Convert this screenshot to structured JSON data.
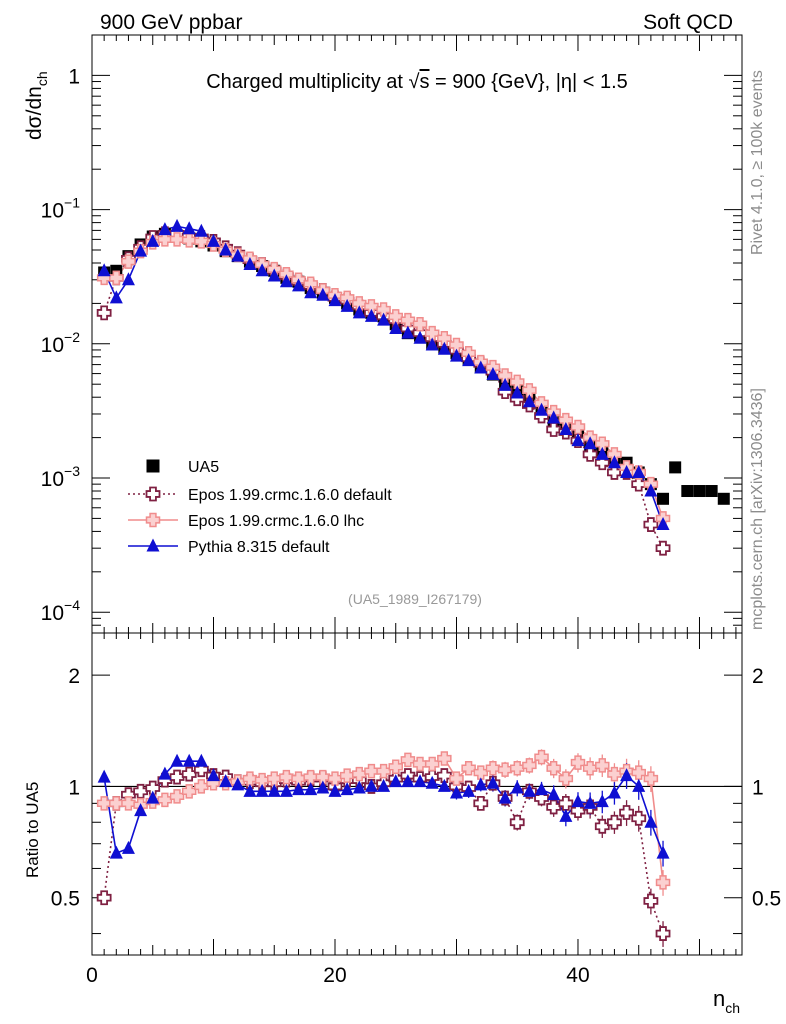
{
  "header": {
    "left": "900 GeV ppbar",
    "right": "Soft QCD"
  },
  "side_labels": {
    "rivet": "Rivet 4.1.0, ≥ 100k events",
    "mcplots": "mcplots.cern.ch [arXiv:1306.3436]"
  },
  "chart_data": [
    {
      "type": "scatter",
      "title": "Charged multiplicity at √s = 900 {GeV}, |η| < 1.5",
      "title_parts": {
        "a": "Charged multiplicity at ",
        "sqrt": "√",
        "s": "s",
        "b": " = 900 {GeV}, |η| < 1.5"
      },
      "ylabel": {
        "main": "dσ/dn",
        "sub": "ch"
      },
      "yscale": "log",
      "ylim": [
        7e-05,
        2.0
      ],
      "xlim": [
        0,
        53.5
      ],
      "ytick_labels": [
        {
          "value": 1,
          "mant": "1",
          "exp": ""
        },
        {
          "value": 0.1,
          "mant": "10",
          "exp": "−1"
        },
        {
          "value": 0.01,
          "mant": "10",
          "exp": "−2"
        },
        {
          "value": 0.001,
          "mant": "10",
          "exp": "−3"
        },
        {
          "value": 0.0001,
          "mant": "10",
          "exp": "−4"
        }
      ],
      "watermark": "(UA5_1989_I267179)",
      "legend": {
        "position": "bottom-left"
      },
      "series": [
        {
          "name": "UA5",
          "color": "#000000",
          "marker": "square",
          "x": [
            1,
            2,
            3,
            4,
            5,
            6,
            7,
            8,
            9,
            10,
            11,
            12,
            13,
            14,
            15,
            16,
            17,
            18,
            19,
            20,
            21,
            22,
            23,
            24,
            25,
            26,
            27,
            28,
            29,
            30,
            31,
            32,
            33,
            34,
            35,
            36,
            37,
            38,
            39,
            40,
            41,
            42,
            43,
            44,
            45,
            46,
            47,
            48,
            49,
            50,
            51,
            52
          ],
          "y": [
            0.034,
            0.035,
            0.045,
            0.055,
            0.063,
            0.066,
            0.064,
            0.061,
            0.058,
            0.054,
            0.049,
            0.045,
            0.041,
            0.038,
            0.035,
            0.031,
            0.029,
            0.026,
            0.024,
            0.022,
            0.02,
            0.018,
            0.017,
            0.016,
            0.014,
            0.012,
            0.0115,
            0.01,
            0.0093,
            0.0085,
            0.0077,
            0.0067,
            0.0059,
            0.0052,
            0.0046,
            0.0039,
            0.0031,
            0.0026,
            0.0025,
            0.0021,
            0.0017,
            0.0016,
            0.0014,
            0.0013,
            0.0011,
            0.0009,
            0.0007,
            0.0012,
            0.0008,
            0.0008,
            0.0008,
            0.0007
          ]
        },
        {
          "name": "Epos 1.99.crmc.1.6.0 default",
          "color": "#7f2042",
          "marker": "open-cross",
          "line": "dotted",
          "x": [
            1,
            2,
            3,
            4,
            5,
            6,
            7,
            8,
            9,
            10,
            11,
            12,
            13,
            14,
            15,
            16,
            17,
            18,
            19,
            20,
            21,
            22,
            23,
            24,
            25,
            26,
            27,
            28,
            29,
            30,
            31,
            32,
            33,
            34,
            35,
            36,
            37,
            38,
            39,
            40,
            41,
            42,
            43,
            44,
            45,
            46,
            47
          ],
          "y": [
            0.017,
            0.031,
            0.043,
            0.052,
            0.062,
            0.066,
            0.066,
            0.063,
            0.062,
            0.058,
            0.052,
            0.047,
            0.042,
            0.039,
            0.035,
            0.032,
            0.029,
            0.027,
            0.025,
            0.022,
            0.021,
            0.019,
            0.017,
            0.016,
            0.015,
            0.013,
            0.012,
            0.011,
            0.01,
            0.0089,
            0.0078,
            0.0071,
            0.0062,
            0.0044,
            0.0039,
            0.0035,
            0.0029,
            0.0023,
            0.0022,
            0.0019,
            0.0015,
            0.0013,
            0.0011,
            0.0011,
            0.0009,
            0.00045,
            0.0003
          ]
        },
        {
          "name": "Epos 1.99.crmc.1.6.0 lhc",
          "color": "#f08c8c",
          "marker": "cross",
          "line": "solid",
          "x": [
            1,
            2,
            3,
            4,
            5,
            6,
            7,
            8,
            9,
            10,
            11,
            12,
            13,
            14,
            15,
            16,
            17,
            18,
            19,
            20,
            21,
            22,
            23,
            24,
            25,
            26,
            27,
            28,
            29,
            30,
            31,
            32,
            33,
            34,
            35,
            36,
            37,
            38,
            39,
            40,
            41,
            42,
            43,
            44,
            45,
            46,
            47
          ],
          "y": [
            0.031,
            0.031,
            0.041,
            0.049,
            0.057,
            0.06,
            0.06,
            0.059,
            0.058,
            0.055,
            0.05,
            0.046,
            0.043,
            0.039,
            0.036,
            0.033,
            0.03,
            0.028,
            0.025,
            0.023,
            0.022,
            0.02,
            0.019,
            0.018,
            0.016,
            0.015,
            0.014,
            0.012,
            0.011,
            0.0098,
            0.0085,
            0.0073,
            0.0067,
            0.0058,
            0.0052,
            0.0045,
            0.0036,
            0.0031,
            0.0027,
            0.0024,
            0.002,
            0.0018,
            0.0015,
            0.0012,
            0.0011,
            0.0009,
            0.0005
          ]
        },
        {
          "name": "Pythia 8.315 default",
          "color": "#0f0fd2",
          "marker": "triangle",
          "line": "solid",
          "x": [
            1,
            2,
            3,
            4,
            5,
            6,
            7,
            8,
            9,
            10,
            11,
            12,
            13,
            14,
            15,
            16,
            17,
            18,
            19,
            20,
            21,
            22,
            23,
            24,
            25,
            26,
            27,
            28,
            29,
            30,
            31,
            32,
            33,
            34,
            35,
            36,
            37,
            38,
            39,
            40,
            41,
            42,
            43,
            44,
            45,
            46,
            47
          ],
          "y": [
            0.035,
            0.022,
            0.03,
            0.049,
            0.058,
            0.071,
            0.075,
            0.072,
            0.069,
            0.058,
            0.05,
            0.045,
            0.039,
            0.035,
            0.032,
            0.029,
            0.027,
            0.024,
            0.023,
            0.021,
            0.019,
            0.017,
            0.016,
            0.015,
            0.013,
            0.012,
            0.011,
            0.0098,
            0.0091,
            0.0081,
            0.0075,
            0.0066,
            0.0059,
            0.0049,
            0.0043,
            0.0037,
            0.0032,
            0.0028,
            0.0023,
            0.0019,
            0.0018,
            0.0015,
            0.0013,
            0.0011,
            0.0011,
            0.0008,
            0.00045
          ]
        }
      ]
    },
    {
      "type": "scatter",
      "ylabel": "Ratio to UA5",
      "xlabel": {
        "main": "n",
        "sub": "ch"
      },
      "yscale": "log",
      "ylim": [
        0.35,
        2.6
      ],
      "xlim": [
        0,
        53.5
      ],
      "xtick_labels": [
        {
          "value": 0,
          "label": "0"
        },
        {
          "value": 20,
          "label": "20"
        },
        {
          "value": 40,
          "label": "40"
        }
      ],
      "ytick_labels": [
        {
          "value": 0.5,
          "label": "0.5"
        },
        {
          "value": 1,
          "label": "1"
        },
        {
          "value": 2,
          "label": "2"
        }
      ],
      "reference_line": 1,
      "series": [
        {
          "name": "Epos 1.99.crmc.1.6.0 default",
          "color": "#7f2042",
          "marker": "open-cross",
          "line": "dotted",
          "x": [
            1,
            2,
            3,
            4,
            5,
            6,
            7,
            8,
            9,
            10,
            11,
            12,
            13,
            14,
            15,
            16,
            17,
            18,
            19,
            20,
            21,
            22,
            23,
            24,
            25,
            26,
            27,
            28,
            29,
            30,
            31,
            32,
            33,
            34,
            35,
            36,
            37,
            38,
            39,
            40,
            41,
            42,
            43,
            44,
            45,
            46,
            47
          ],
          "y": [
            0.5,
            0.9,
            0.95,
            0.97,
            0.99,
            1.04,
            1.06,
            1.08,
            1.11,
            1.07,
            1.06,
            1.03,
            1.03,
            1.02,
            1.02,
            1.04,
            1.03,
            1.05,
            1.05,
            1.0,
            1.04,
            1.04,
            1.0,
            1.02,
            1.05,
            1.07,
            1.05,
            1.06,
            1.07,
            1.0,
            0.99,
            0.9,
            1.02,
            0.93,
            0.8,
            0.97,
            0.93,
            0.88,
            0.9,
            0.86,
            0.88,
            0.78,
            0.8,
            0.85,
            0.82,
            0.49,
            0.4
          ],
          "err": [
            0.03,
            0.03,
            0.03,
            0.03,
            0.03,
            0.03,
            0.03,
            0.03,
            0.03,
            0.03,
            0.03,
            0.03,
            0.03,
            0.03,
            0.03,
            0.03,
            0.03,
            0.03,
            0.03,
            0.03,
            0.03,
            0.03,
            0.03,
            0.03,
            0.03,
            0.03,
            0.03,
            0.03,
            0.03,
            0.04,
            0.04,
            0.04,
            0.05,
            0.05,
            0.05,
            0.05,
            0.05,
            0.06,
            0.06,
            0.06,
            0.07,
            0.07,
            0.07,
            0.08,
            0.08,
            0.08,
            0.08
          ]
        },
        {
          "name": "Epos 1.99.crmc.1.6.0 lhc",
          "color": "#f08c8c",
          "marker": "cross",
          "line": "solid",
          "x": [
            1,
            2,
            3,
            4,
            5,
            6,
            7,
            8,
            9,
            10,
            11,
            12,
            13,
            14,
            15,
            16,
            17,
            18,
            19,
            20,
            21,
            22,
            23,
            24,
            25,
            26,
            27,
            28,
            29,
            30,
            31,
            32,
            33,
            34,
            35,
            36,
            37,
            38,
            39,
            40,
            41,
            42,
            43,
            44,
            45,
            46,
            47
          ],
          "y": [
            0.9,
            0.9,
            0.9,
            0.89,
            0.91,
            0.92,
            0.94,
            0.97,
            1.0,
            1.02,
            1.02,
            1.03,
            1.05,
            1.04,
            1.05,
            1.06,
            1.05,
            1.06,
            1.06,
            1.05,
            1.07,
            1.08,
            1.1,
            1.1,
            1.13,
            1.18,
            1.15,
            1.15,
            1.19,
            1.05,
            1.12,
            1.09,
            1.12,
            1.11,
            1.12,
            1.14,
            1.2,
            1.12,
            1.05,
            1.16,
            1.12,
            1.14,
            1.08,
            1.1,
            1.09,
            1.05,
            0.55
          ],
          "err": [
            0.03,
            0.03,
            0.03,
            0.03,
            0.03,
            0.03,
            0.03,
            0.03,
            0.03,
            0.03,
            0.03,
            0.03,
            0.03,
            0.03,
            0.03,
            0.03,
            0.03,
            0.03,
            0.03,
            0.03,
            0.03,
            0.03,
            0.03,
            0.03,
            0.03,
            0.03,
            0.03,
            0.03,
            0.03,
            0.04,
            0.04,
            0.04,
            0.05,
            0.05,
            0.05,
            0.05,
            0.05,
            0.06,
            0.06,
            0.06,
            0.07,
            0.07,
            0.07,
            0.08,
            0.08,
            0.08,
            0.08
          ]
        },
        {
          "name": "Pythia 8.315 default",
          "color": "#0f0fd2",
          "marker": "triangle",
          "line": "solid",
          "x": [
            1,
            2,
            3,
            4,
            5,
            6,
            7,
            8,
            9,
            10,
            11,
            12,
            13,
            14,
            15,
            16,
            17,
            18,
            19,
            20,
            21,
            22,
            23,
            24,
            25,
            26,
            27,
            28,
            29,
            30,
            31,
            32,
            33,
            34,
            35,
            36,
            37,
            38,
            39,
            40,
            41,
            42,
            43,
            44,
            45,
            46,
            47
          ],
          "y": [
            1.06,
            0.66,
            0.68,
            0.86,
            0.93,
            1.08,
            1.17,
            1.17,
            1.17,
            1.07,
            1.03,
            1.01,
            0.97,
            0.97,
            0.97,
            0.97,
            0.98,
            0.98,
            0.99,
            0.97,
            0.98,
            0.99,
            1.0,
            1.0,
            1.03,
            1.03,
            1.03,
            1.02,
            1.0,
            0.96,
            0.97,
            1.01,
            1.02,
            0.93,
            0.99,
            0.97,
            0.98,
            0.95,
            0.83,
            0.91,
            0.9,
            0.91,
            0.96,
            1.07,
            1.0,
            0.8,
            0.66
          ],
          "err": [
            0.03,
            0.03,
            0.03,
            0.03,
            0.03,
            0.03,
            0.03,
            0.03,
            0.03,
            0.03,
            0.03,
            0.03,
            0.03,
            0.03,
            0.03,
            0.03,
            0.03,
            0.03,
            0.03,
            0.03,
            0.03,
            0.03,
            0.03,
            0.03,
            0.03,
            0.03,
            0.03,
            0.03,
            0.03,
            0.04,
            0.04,
            0.04,
            0.05,
            0.05,
            0.05,
            0.05,
            0.05,
            0.06,
            0.06,
            0.06,
            0.07,
            0.07,
            0.07,
            0.08,
            0.08,
            0.08,
            0.08
          ]
        }
      ]
    }
  ]
}
